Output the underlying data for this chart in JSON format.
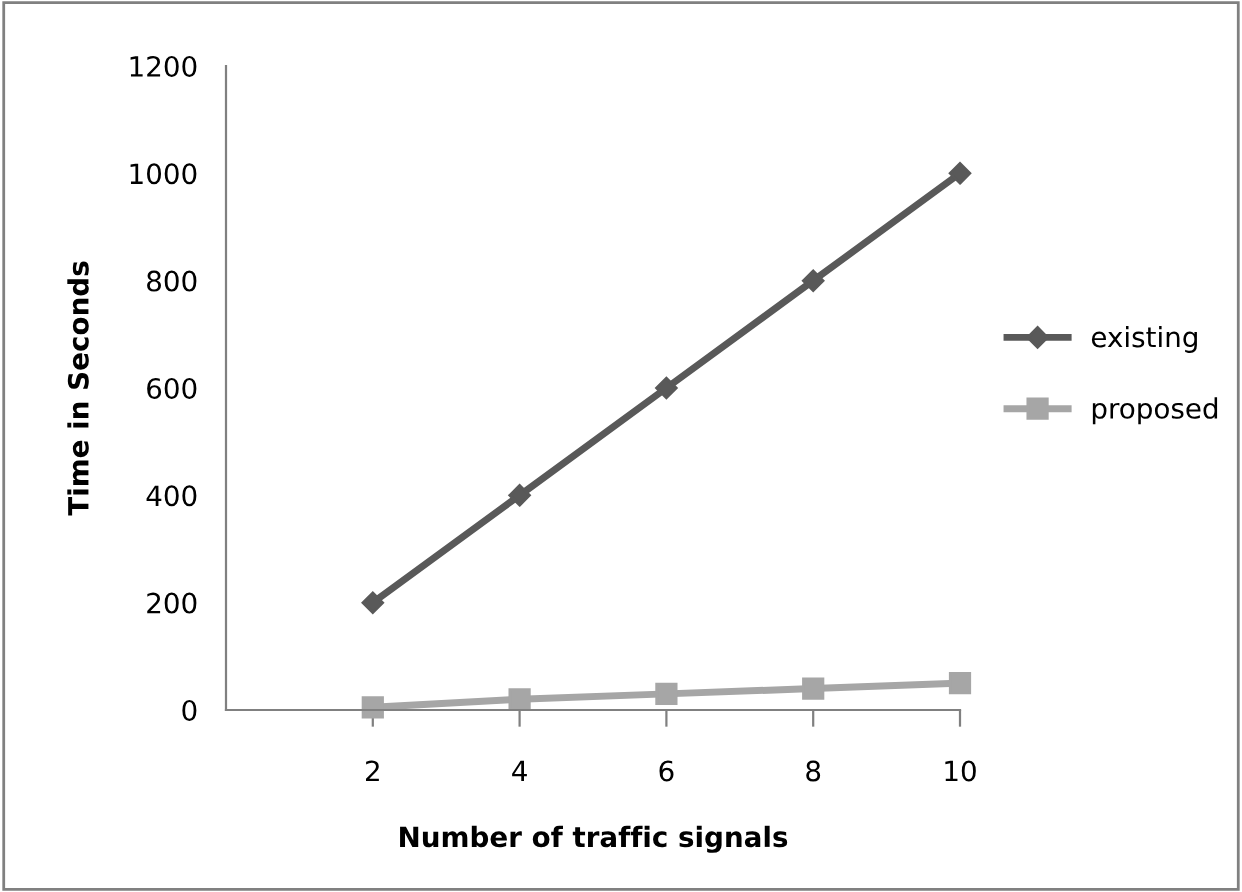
{
  "chart_data": {
    "type": "line",
    "xlabel": "Number of traffic signals",
    "ylabel": "Time in Seconds",
    "x": [
      2,
      4,
      6,
      8,
      10
    ],
    "series": [
      {
        "name": "existing",
        "color": "#595959",
        "values": [
          200,
          400,
          600,
          800,
          1000
        ],
        "marker": "diamond"
      },
      {
        "name": "proposed",
        "color": "#a6a6a6",
        "values": [
          5,
          20,
          30,
          40,
          50
        ],
        "marker": "square"
      }
    ],
    "xlim": [
      0,
      10
    ],
    "xticks": [
      2,
      4,
      6,
      8,
      10
    ],
    "ylim": [
      0,
      1200
    ],
    "yticks": [
      0,
      200,
      400,
      600,
      800,
      1000,
      1200
    ],
    "grid": false,
    "legend": "right",
    "line_style": "solid"
  }
}
